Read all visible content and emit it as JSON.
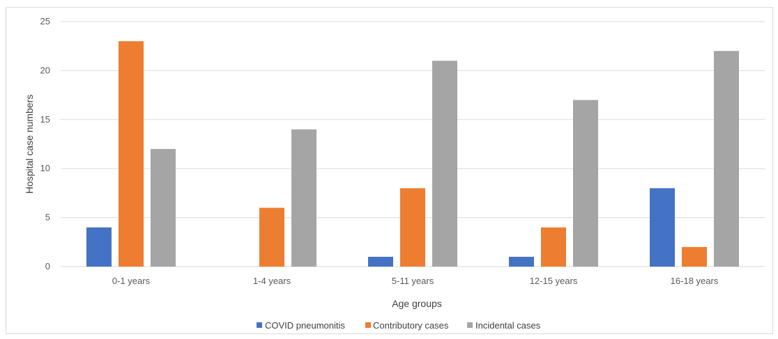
{
  "chart_data": {
    "type": "bar",
    "title": "",
    "xlabel": "Age groups",
    "ylabel": "Hospital case numbers",
    "categories": [
      "0-1 years",
      "1-4 years",
      "5-11 years",
      "12-15 years",
      "16-18 years"
    ],
    "series": [
      {
        "name": "COVID pneumonitis",
        "color": "#4472c4",
        "values": [
          4,
          0,
          1,
          1,
          8
        ]
      },
      {
        "name": "Contributory cases",
        "color": "#ed7d31",
        "values": [
          23,
          6,
          8,
          4,
          2
        ]
      },
      {
        "name": "Incidental cases",
        "color": "#a5a5a5",
        "values": [
          12,
          14,
          21,
          17,
          22
        ]
      }
    ],
    "ylim": [
      0,
      25
    ],
    "yticks": [
      0,
      5,
      10,
      15,
      20,
      25
    ],
    "grid": true,
    "legend_position": "bottom"
  }
}
